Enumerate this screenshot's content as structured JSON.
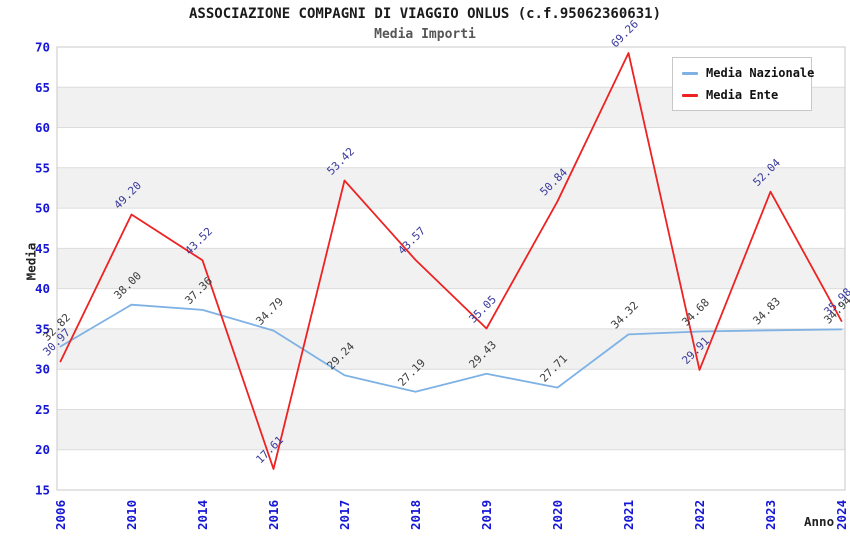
{
  "chart_data": {
    "type": "line",
    "title": "ASSOCIAZIONE COMPAGNI DI VIAGGIO ONLUS (c.f.95062360631)",
    "subtitle": "Media Importi",
    "xlabel": "Anno",
    "ylabel": "Media",
    "ylim": [
      15,
      70
    ],
    "yticks": [
      15,
      20,
      25,
      30,
      35,
      40,
      45,
      50,
      55,
      60,
      65,
      70
    ],
    "categories": [
      "2006",
      "2010",
      "2014",
      "2016",
      "2017",
      "2018",
      "2019",
      "2020",
      "2021",
      "2022",
      "2023",
      "2024"
    ],
    "series": [
      {
        "name": "Media Nazionale",
        "color": "#7eb2e4",
        "label_color": "#3c3c3c",
        "values": [
          32.82,
          38.0,
          37.36,
          34.79,
          29.24,
          27.19,
          29.43,
          27.71,
          34.32,
          34.68,
          34.83,
          34.94
        ]
      },
      {
        "name": "Media Ente",
        "color": "#ee2222",
        "label_color": "#39399b",
        "values": [
          30.97,
          49.2,
          43.52,
          17.61,
          53.42,
          43.57,
          35.05,
          50.84,
          69.26,
          29.91,
          52.04,
          35.98
        ]
      }
    ],
    "legend_position": "top-right",
    "grid": "horizontal",
    "band_color": "#f1f1f1",
    "grid_color": "#dcdcdc",
    "border_color": "#c8c8c8",
    "axis_tick_color": "#1616d6"
  }
}
